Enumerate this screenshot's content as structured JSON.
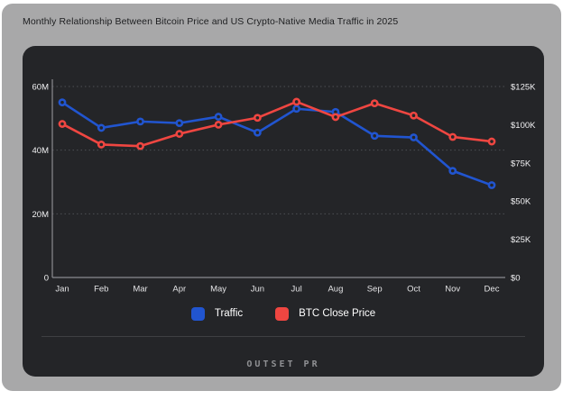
{
  "page": {
    "title": "Monthly Relationship Between Bitcoin Price and US Crypto-Native Media Traffic in 2025",
    "footer_logo": "OUTSET PR"
  },
  "colors": {
    "background": "#a8a8a9",
    "card": "#242528",
    "traffic_blue": "#2155d0",
    "btc_red": "#ef4641",
    "gridline": "#4e4f53",
    "axis_line": "#8b8c90",
    "tick_text": "#f1f1f3"
  },
  "legend": {
    "items": [
      {
        "label": "Traffic",
        "color": "#2155d0"
      },
      {
        "label": "BTC Close Price",
        "color": "#ef4641"
      }
    ]
  },
  "chart_data": {
    "type": "line",
    "title": "Monthly Relationship Between Bitcoin Price and US Crypto-Native Media Traffic in 2025",
    "x": [
      "Jan",
      "Feb",
      "Mar",
      "Apr",
      "May",
      "Jun",
      "Jul",
      "Aug",
      "Sep",
      "Oct",
      "Nov",
      "Dec"
    ],
    "series": [
      {
        "name": "Traffic",
        "axis": "left",
        "unit": "M visits",
        "color": "#2155d0",
        "values": [
          55,
          47,
          49,
          48.5,
          50.5,
          45.5,
          53,
          52,
          44.5,
          44,
          33.5,
          29
        ]
      },
      {
        "name": "BTC Close Price",
        "axis": "right",
        "unit": "$K",
        "color": "#ef4641",
        "values": [
          100.5,
          87,
          86,
          94,
          100,
          104.5,
          115,
          105,
          114,
          106,
          92,
          89
        ]
      }
    ],
    "left_axis": {
      "min": 0,
      "max": 60,
      "ticks": [
        {
          "value": 0,
          "label": "0"
        },
        {
          "value": 20,
          "label": "20M"
        },
        {
          "value": 40,
          "label": "40M"
        },
        {
          "value": 60,
          "label": "60M"
        }
      ]
    },
    "right_axis": {
      "min": 0,
      "max": 125,
      "ticks": [
        {
          "value": 0,
          "label": "$0"
        },
        {
          "value": 25,
          "label": "$25K"
        },
        {
          "value": 50,
          "label": "$50K"
        },
        {
          "value": 75,
          "label": "$75K"
        },
        {
          "value": 100,
          "label": "$100K"
        },
        {
          "value": 125,
          "label": "$125K"
        }
      ]
    },
    "grid": "horizontal-dotted",
    "legend_position": "bottom"
  }
}
